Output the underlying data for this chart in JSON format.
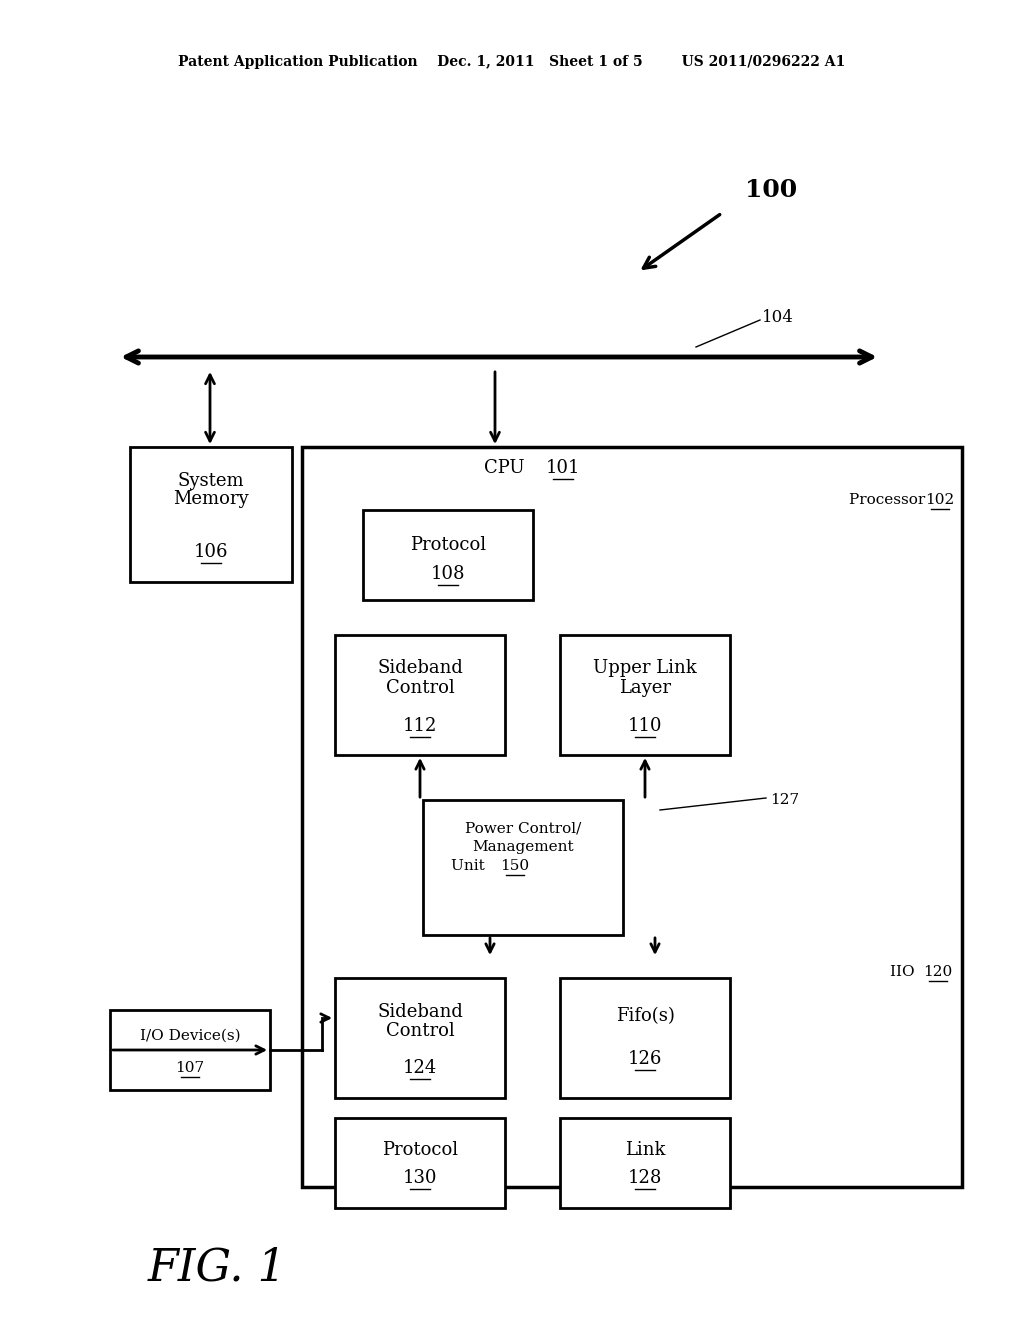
{
  "bg_color": "#ffffff",
  "header": "Patent Application Publication    Dec. 1, 2011   Sheet 1 of 5        US 2011/0296222 A1",
  "fig_label": "FIG. 1",
  "lbl_100": "100",
  "lbl_104": "104",
  "lbl_101": "101",
  "lbl_cpu": "CPU",
  "lbl_proc": "Processor ",
  "lbl_proc_num": "102",
  "lbl_sys1": "System",
  "lbl_sys2": "Memory",
  "lbl_sys_num": "106",
  "lbl_io1": "I/O Device(s)",
  "lbl_io_num": "107",
  "lbl_p108a": "Protocol",
  "lbl_p108_num": "108",
  "lbl_sb112a": "Sideband",
  "lbl_sb112b": "Control",
  "lbl_sb112_num": "112",
  "lbl_ul110a": "Upper Link",
  "lbl_ul110b": "Layer",
  "lbl_ul110_num": "110",
  "lbl_pcm1": "Power Control/",
  "lbl_pcm2": "Management",
  "lbl_pcm3": "Unit ",
  "lbl_pcm_num": "150",
  "lbl_iio": "IIO ",
  "lbl_iio_num": "120",
  "lbl_127": "127",
  "lbl_sb124a": "Sideband",
  "lbl_sb124b": "Control",
  "lbl_sb124_num": "124",
  "lbl_fifo1": "Fifo(s)",
  "lbl_fifo_num": "126",
  "lbl_p130a": "Protocol",
  "lbl_p130_num": "130",
  "lbl_lnk128a": "Link",
  "lbl_lnk128_num": "128"
}
